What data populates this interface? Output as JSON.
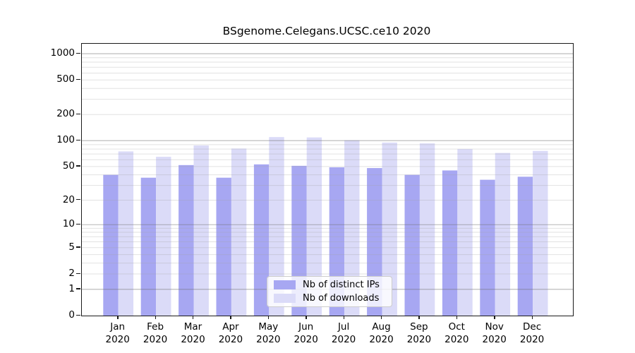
{
  "chart_data": {
    "type": "bar",
    "title": "BSgenome.Celegans.UCSC.ce10 2020",
    "categories": [
      "Jan 2020",
      "Feb 2020",
      "Mar 2020",
      "Apr 2020",
      "May 2020",
      "Jun 2020",
      "Jul 2020",
      "Aug 2020",
      "Sep 2020",
      "Oct 2020",
      "Nov 2020",
      "Dec 2020"
    ],
    "x_months": [
      "Jan",
      "Feb",
      "Mar",
      "Apr",
      "May",
      "Jun",
      "Jul",
      "Aug",
      "Sep",
      "Oct",
      "Nov",
      "Dec"
    ],
    "x_year": "2020",
    "series": [
      {
        "name": "Nb of distinct IPs",
        "color": "#a7a7f2",
        "values": [
          40,
          37,
          52,
          37,
          53,
          51,
          49,
          48,
          40,
          45,
          35,
          38
        ]
      },
      {
        "name": "Nb of downloads",
        "color": "#dbdbf8",
        "values": [
          75,
          65,
          88,
          81,
          110,
          109,
          101,
          95,
          93,
          80,
          72,
          76
        ]
      }
    ],
    "yscale": "log1p",
    "y_ticks": [
      0,
      1,
      2,
      5,
      10,
      20,
      50,
      100,
      200,
      500,
      1000
    ],
    "ylim": [
      0,
      1300
    ],
    "grid": true,
    "legend_position": "lower center",
    "axis_color": "#1a1a1a",
    "major_grid_color": "rgba(110,110,110,0.50)",
    "minor_grid_color": "rgba(165,165,165,0.32)"
  }
}
